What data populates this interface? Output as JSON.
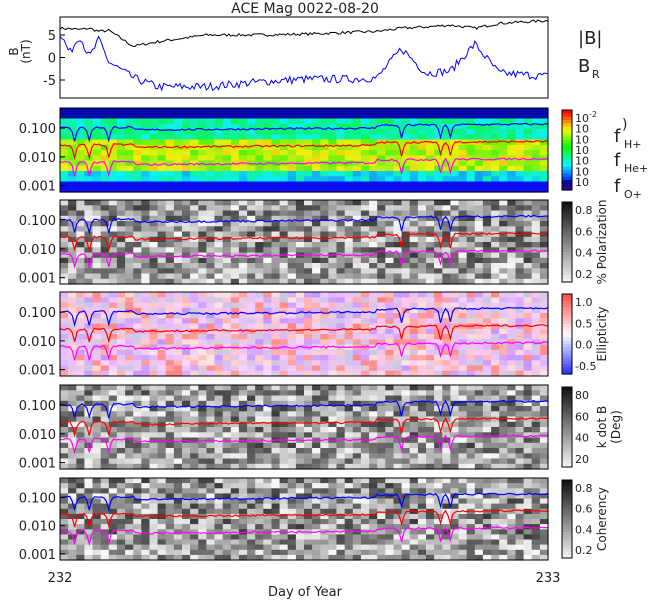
{
  "title": "ACE Mag 0022-08-20",
  "xlabel": "Day of Year",
  "x_ticks": [
    "232",
    "233"
  ],
  "legend": {
    "b_total": "|B|",
    "b_radial": "B",
    "b_radial_sub": "R",
    "h_plus": "f",
    "h_plus_sub": "H+",
    "he_plus": "f",
    "he_plus_sub": "He+",
    "o_plus": "f",
    "o_plus_sub": "O+",
    "paren": ")"
  },
  "colors": {
    "b_total": "#000000",
    "b_radial": "#0000ff",
    "h_plus": "#0000ff",
    "he_plus": "#ff0000",
    "o_plus": "#ff00ff"
  },
  "chart_data": [
    {
      "type": "line",
      "ylabel": "B",
      "ylabel_unit": "(nT)",
      "ylim": [
        -9,
        9
      ],
      "y_ticks": [
        "5",
        "0",
        "-5"
      ],
      "x": [
        232.0,
        232.02,
        232.04,
        232.06,
        232.08,
        232.1,
        232.15,
        232.2,
        232.3,
        232.4,
        232.5,
        232.6,
        232.65,
        232.7,
        232.75,
        232.8,
        232.85,
        232.9,
        232.95,
        233.0
      ],
      "series": [
        {
          "name": "|B|",
          "values": [
            6.5,
            6.4,
            6.2,
            6.5,
            5.8,
            6.0,
            2.5,
            3.5,
            5.0,
            5.0,
            5.2,
            5.6,
            5.8,
            6.5,
            6.8,
            7.2,
            6.5,
            7.6,
            7.9,
            8.2
          ]
        },
        {
          "name": "B_R",
          "values": [
            5.5,
            1.0,
            5.0,
            0.0,
            4.0,
            -1.0,
            -4.5,
            -6.5,
            -6.5,
            -5.5,
            -4.8,
            -4.8,
            -4.5,
            2.0,
            -3.5,
            -3.0,
            3.0,
            -3.5,
            -3.8,
            -4.2
          ]
        }
      ]
    },
    {
      "type": "heatmap",
      "ylabel": "",
      "y_ticks": [
        "0.100",
        "0.010",
        "0.001"
      ],
      "colorbar_ticks": [
        "10",
        "10",
        "10",
        "10",
        "10",
        "10",
        "10"
      ],
      "colorbar_top": "-2",
      "colorbar_label": "",
      "lines": {
        "h_plus": 0.12,
        "he_plus": 0.03,
        "o_plus": 0.0075
      }
    },
    {
      "type": "heatmap",
      "ylabel": "",
      "y_ticks": [
        "0.100",
        "0.010",
        "0.001"
      ],
      "colorbar_ticks": [
        "0.8",
        "0.6",
        "0.4",
        "0.2"
      ],
      "colorbar_label": "% Polarization",
      "lines": {
        "h_plus": 0.12,
        "he_plus": 0.03,
        "o_plus": 0.0075
      }
    },
    {
      "type": "heatmap",
      "ylabel": "",
      "y_ticks": [
        "0.100",
        "0.010",
        "0.001"
      ],
      "colorbar_ticks": [
        "1.0",
        "0.5",
        "0.0",
        "-0.5"
      ],
      "colorbar_label": "Ellipticity",
      "lines": {
        "h_plus": 0.12,
        "he_plus": 0.03,
        "o_plus": 0.0075
      }
    },
    {
      "type": "heatmap",
      "ylabel": "",
      "y_ticks": [
        "0.100",
        "0.010",
        "0.001"
      ],
      "colorbar_ticks": [
        "80",
        "60",
        "40",
        "20"
      ],
      "colorbar_label": "k dot B",
      "colorbar_label2": "(Deg)",
      "lines": {
        "h_plus": 0.12,
        "he_plus": 0.03,
        "o_plus": 0.0075
      }
    },
    {
      "type": "heatmap",
      "ylabel": "",
      "y_ticks": [
        "0.100",
        "0.010",
        "0.001"
      ],
      "colorbar_ticks": [
        "0.8",
        "0.6",
        "0.4",
        "0.2"
      ],
      "colorbar_label": "Coherency",
      "lines": {
        "h_plus": 0.12,
        "he_plus": 0.03,
        "o_plus": 0.0075
      }
    }
  ]
}
